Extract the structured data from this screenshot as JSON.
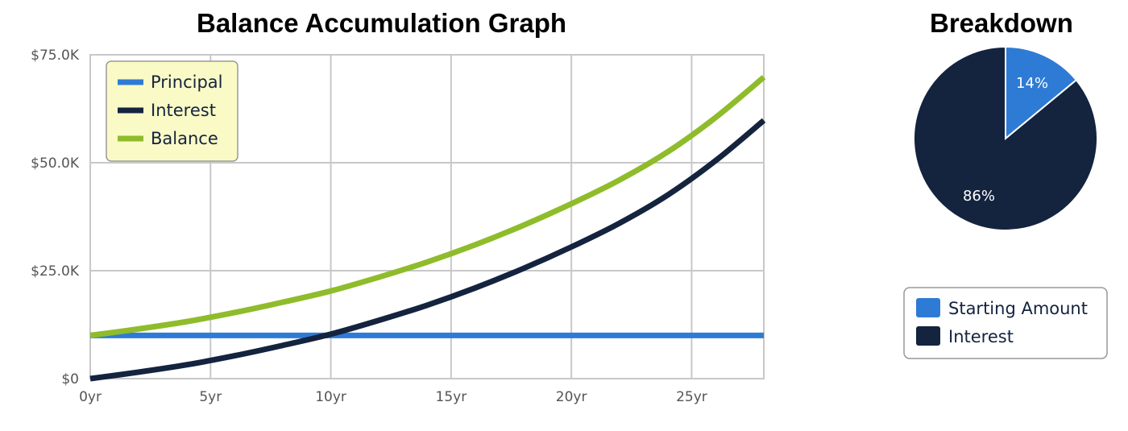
{
  "colors": {
    "principal": "#2e7bd6",
    "interest": "#14233e",
    "balance": "#8fbc2a",
    "grid": "#c8c8c8",
    "legend_bg": "#fafac6"
  },
  "chart_data": [
    {
      "type": "line",
      "title": "Balance Accumulation Graph",
      "xlabel": "",
      "ylabel": "",
      "x_tick_labels": [
        "0yr",
        "5yr",
        "10yr",
        "15yr",
        "20yr",
        "25yr"
      ],
      "x_ticks": [
        0,
        5,
        10,
        15,
        20,
        25
      ],
      "y_tick_labels": [
        "$0",
        "$25.0K",
        "$50.0K",
        "$75.0K"
      ],
      "y_ticks": [
        0,
        25000,
        50000,
        75000
      ],
      "xlim": [
        0,
        28
      ],
      "ylim": [
        0,
        75000
      ],
      "grid": true,
      "legend_position": "top-left",
      "x": [
        0,
        2,
        4,
        6,
        8,
        10,
        12,
        14,
        16,
        18,
        20,
        22,
        24,
        26,
        28
      ],
      "series": [
        {
          "name": "Principal",
          "color_key": "principal",
          "values": [
            10000,
            10000,
            10000,
            10000,
            10000,
            10000,
            10000,
            10000,
            10000,
            10000,
            10000,
            10000,
            10000,
            10000,
            10000
          ]
        },
        {
          "name": "Interest",
          "color_key": "interest",
          "values": [
            0,
            1500,
            3200,
            5300,
            7700,
            10300,
            13500,
            17000,
            21000,
            25500,
            30500,
            36000,
            42500,
            50500,
            59800
          ]
        },
        {
          "name": "Balance",
          "color_key": "balance",
          "values": [
            10000,
            11500,
            13200,
            15300,
            17700,
            20300,
            23500,
            27000,
            31000,
            35500,
            40500,
            46000,
            52500,
            60500,
            69800
          ]
        }
      ]
    },
    {
      "type": "pie",
      "title": "Breakdown",
      "legend_position": "bottom",
      "slices": [
        {
          "name": "Starting Amount",
          "value": 14,
          "label": "14%",
          "color_key": "principal"
        },
        {
          "name": "Interest",
          "value": 86,
          "label": "86%",
          "color_key": "interest"
        }
      ]
    }
  ]
}
